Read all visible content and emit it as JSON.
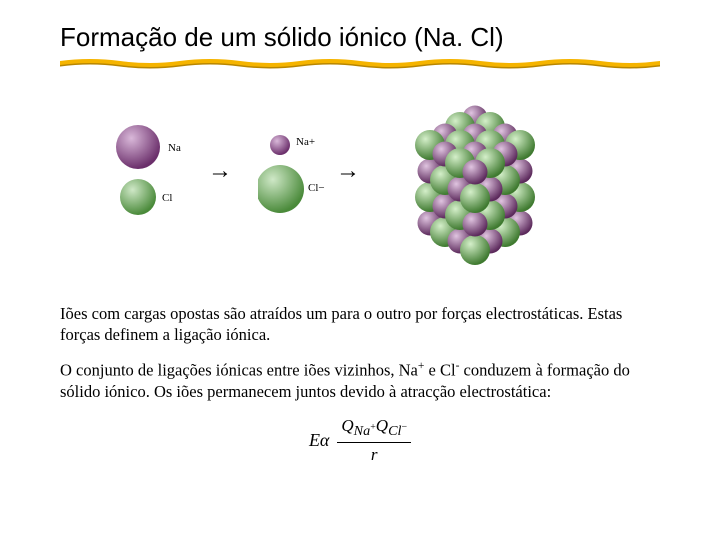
{
  "title": "Formação de um sólido iónico (Na. Cl)",
  "underline": {
    "color": "#f5b400",
    "shadow": "#b88600"
  },
  "atoms": {
    "na": {
      "label": "Na",
      "color": "#7a3c7a",
      "highlight": "#c08ac0",
      "radius": 22
    },
    "cl": {
      "label": "Cl",
      "color": "#5fa64e",
      "highlight": "#a6d49a",
      "radius": 18
    },
    "na_ion": {
      "label": "Na+",
      "color": "#7a3c7a",
      "highlight": "#c08ac0",
      "radius": 10
    },
    "cl_ion": {
      "label": "Cl−",
      "color": "#5fa64e",
      "highlight": "#a6d49a",
      "radius": 24
    }
  },
  "paragraph1": "Iões com cargas opostas  são atraídos um para o outro por forças electrostáticas. Estas forças definem a ligação iónica.",
  "paragraph2_a": "O conjunto de ligações iónicas entre iões vizinhos, Na",
  "paragraph2_b": " e Cl",
  "paragraph2_c": " conduzem à formação do sólido iónico. Os iões permanecem juntos devido à atracção electrostática:",
  "sup_plus": "+",
  "sup_minus": "-",
  "equation": {
    "lhs": "Eα",
    "num_a": "Q",
    "num_a_sub": "Na",
    "num_a_sup": "+",
    "num_b": "Q",
    "num_b_sub": "Cl",
    "num_b_sup": "−",
    "den": "r"
  }
}
